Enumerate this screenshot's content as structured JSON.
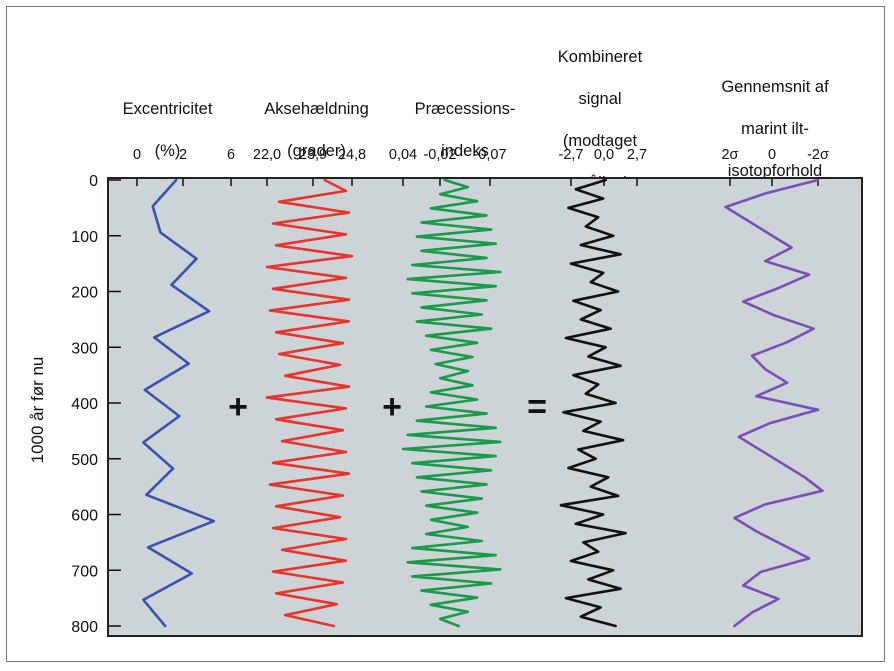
{
  "chart_data": {
    "type": "line",
    "ylabel": "1000 år før nu",
    "y_ticks": [
      "0",
      "100",
      "200",
      "300",
      "400",
      "500",
      "600",
      "700",
      "800"
    ],
    "ylim": [
      0,
      800
    ],
    "panels": [
      {
        "name": "Excentricitet (%)",
        "header_lines": [
          "Excentricitet",
          "(%)"
        ],
        "color": "#3b52b0",
        "x_ticks": [
          "0",
          "2",
          "6"
        ],
        "xlim": [
          0,
          6
        ],
        "values": [
          2.5,
          1.0,
          1.5,
          3.8,
          2.2,
          4.6,
          1.1,
          3.3,
          0.5,
          2.7,
          0.4,
          2.3,
          0.6,
          4.9,
          0.7,
          3.5,
          0.4,
          1.8
        ]
      },
      {
        "name": "Aksehældning (grader)",
        "header_lines": [
          "Aksehældning",
          "(grader)"
        ],
        "color": "#e8342c",
        "x_ticks": [
          "22,0",
          "23,9",
          "24,8"
        ],
        "xlim": [
          22.0,
          24.8
        ],
        "values": [
          23.9,
          24.6,
          22.4,
          24.7,
          22.2,
          24.6,
          22.3,
          24.8,
          22.0,
          24.6,
          22.2,
          24.7,
          22.1,
          24.7,
          22.3,
          24.5,
          22.4,
          24.4,
          22.6,
          24.7,
          22.0,
          24.6,
          22.3,
          24.5,
          22.5,
          24.6,
          22.2,
          24.7,
          22.1,
          24.5,
          22.3,
          24.4,
          22.2,
          24.6,
          22.5,
          24.6,
          22.2,
          24.5,
          22.3,
          24.3,
          22.6,
          24.2
        ]
      },
      {
        "name": "Præcessionsindeks",
        "header_lines": [
          "Præcessions-",
          "indeks"
        ],
        "color": "#1a9a4a",
        "x_ticks": [
          "0,04",
          "-0,02",
          "-0,07"
        ],
        "xlim": [
          0.04,
          -0.07
        ],
        "values": [
          -0.005,
          -0.03,
          0.0,
          -0.04,
          0.01,
          -0.05,
          0.02,
          -0.055,
          0.025,
          -0.06,
          0.02,
          -0.05,
          0.03,
          -0.065,
          0.035,
          -0.06,
          0.03,
          -0.05,
          0.02,
          -0.045,
          0.025,
          -0.055,
          0.015,
          -0.04,
          0.01,
          -0.035,
          0.005,
          -0.03,
          0.0,
          -0.035,
          0.01,
          -0.04,
          0.015,
          -0.05,
          0.025,
          -0.06,
          0.035,
          -0.065,
          0.04,
          -0.06,
          0.03,
          -0.055,
          0.025,
          -0.05,
          0.02,
          -0.045,
          0.015,
          -0.04,
          0.01,
          -0.03,
          0.015,
          -0.045,
          0.03,
          -0.06,
          0.035,
          -0.065,
          0.03,
          -0.055,
          0.02,
          -0.04,
          0.01,
          -0.03,
          0.0,
          -0.02
        ]
      },
      {
        "name": "Kombineret signal (modtaget stråling)",
        "header_lines": [
          "Kombineret",
          "signal",
          "(modtaget",
          "stråling)"
        ],
        "color": "#111111",
        "x_ticks": [
          "-2,7",
          "0,0",
          "2,7"
        ],
        "xlim": [
          -4.0,
          3.8
        ],
        "values": [
          0.8,
          -1.6,
          0.6,
          -2.2,
          0.2,
          -0.8,
          1.4,
          -1.2,
          2.0,
          -2.0,
          0.6,
          -0.4,
          1.8,
          -1.8,
          0.4,
          -1.2,
          1.2,
          -2.4,
          0.8,
          -0.6,
          2.0,
          -1.8,
          0.2,
          -0.8,
          1.6,
          -2.6,
          0.4,
          -1.0,
          2.2,
          -1.4,
          0.0,
          -2.2,
          1.0,
          -0.4,
          1.8,
          -2.8,
          0.6,
          -1.6,
          2.4,
          -1.0,
          0.2,
          -2.0,
          1.4,
          -0.6,
          2.0,
          -2.4,
          0.4,
          -1.2,
          1.6
        ]
      },
      {
        "name": "Gennemsnit af marint ilt-isotopforhold",
        "header_lines": [
          "Gennemsnit af",
          "marint ilt-",
          "isotopforhold"
        ],
        "color": "#7a4fb8",
        "x_ticks": [
          "2σ",
          "0",
          "-2σ"
        ],
        "xlim": [
          2,
          -2
        ],
        "values": [
          -2.0,
          0.4,
          2.2,
          1.2,
          0.2,
          -0.8,
          0.4,
          -1.6,
          -0.2,
          1.4,
          0.0,
          -1.8,
          -0.6,
          1.0,
          0.4,
          -0.6,
          0.8,
          -2.0,
          0.2,
          1.6,
          0.6,
          -0.4,
          -1.4,
          -2.2,
          0.4,
          1.8,
          0.8,
          -0.4,
          -1.6,
          0.6,
          1.4,
          -0.2,
          1.0,
          1.8
        ]
      }
    ],
    "operators": [
      "+",
      "+",
      "="
    ]
  }
}
